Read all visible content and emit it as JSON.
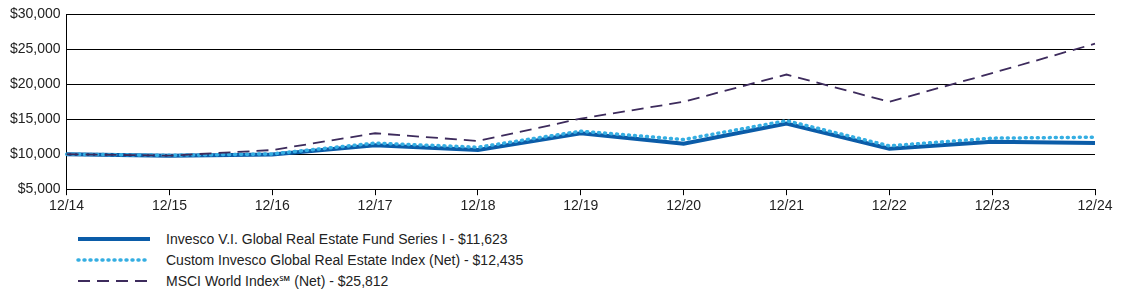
{
  "chart_data": {
    "type": "line",
    "categories": [
      "12/14",
      "12/15",
      "12/16",
      "12/17",
      "12/18",
      "12/19",
      "12/20",
      "12/21",
      "12/22",
      "12/23",
      "12/24"
    ],
    "series": [
      {
        "name": "Invesco V.I. Global Real Estate Fund Series I - $11,623",
        "color": "#0b5ca8",
        "line_style": "solid",
        "values": [
          10000,
          9800,
          9950,
          11300,
          10600,
          13000,
          11500,
          14400,
          10800,
          11800,
          11623
        ]
      },
      {
        "name": "Custom Invesco Global Real Estate Index (Net) - $12,435",
        "color": "#35aee2",
        "line_style": "dotted",
        "values": [
          10000,
          9850,
          10050,
          11600,
          11000,
          13300,
          12100,
          14800,
          11200,
          12300,
          12435
        ]
      },
      {
        "name": "MSCI World Index℠ (Net) - $25,812",
        "color": "#3d2b5c",
        "line_style": "dashed",
        "values": [
          10000,
          9800,
          10600,
          13000,
          11900,
          15100,
          17500,
          21400,
          17500,
          21600,
          25812
        ]
      }
    ],
    "ylim": [
      5000,
      30000
    ],
    "yticks": [
      {
        "value": 5000,
        "label": "$5,000"
      },
      {
        "value": 10000,
        "label": "$10,000"
      },
      {
        "value": 15000,
        "label": "$15,000"
      },
      {
        "value": 20000,
        "label": "$20,000"
      },
      {
        "value": 25000,
        "label": "$25,000"
      },
      {
        "value": 30000,
        "label": "$30,000"
      }
    ],
    "grid": true,
    "legend": "bottom-left"
  }
}
